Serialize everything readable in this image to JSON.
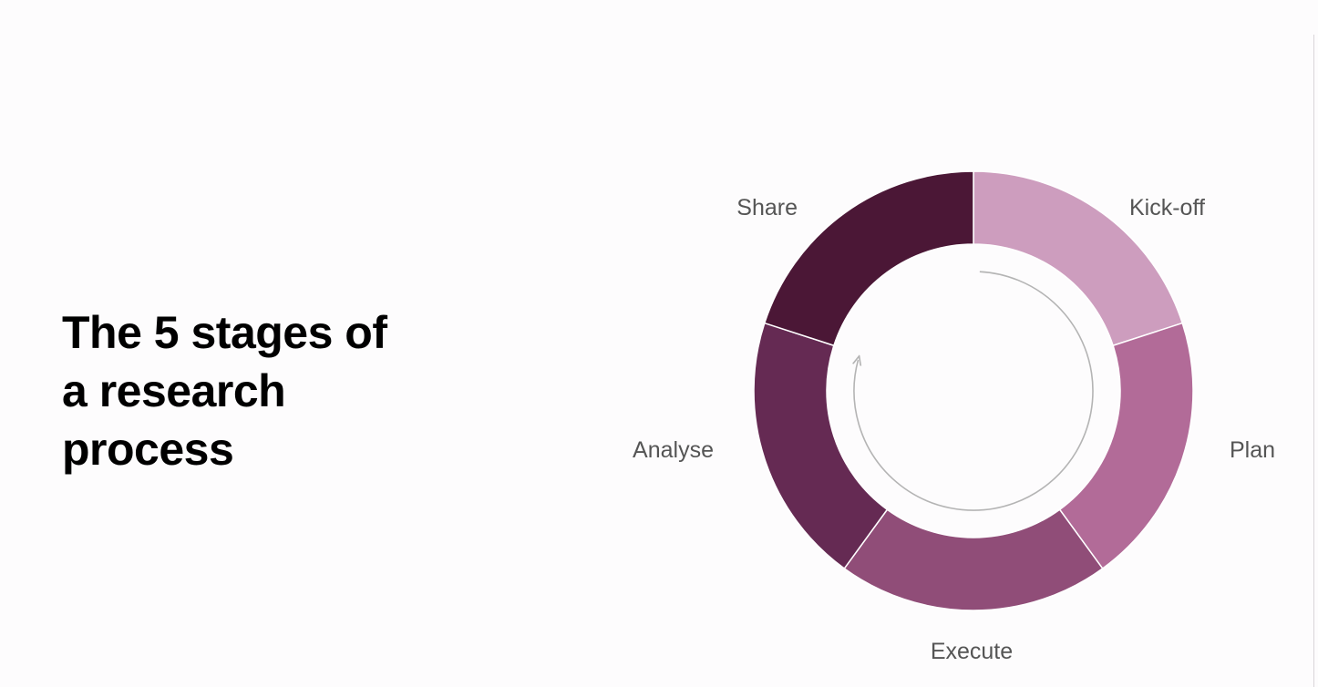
{
  "title": {
    "lines": [
      "The 5 stages of",
      "a research",
      "process"
    ]
  },
  "diagram": {
    "type": "cycle-donut",
    "direction": "clockwise",
    "stages": [
      {
        "label": "Kick-off",
        "color": "#cd9dbe"
      },
      {
        "label": "Plan",
        "color": "#b26b98"
      },
      {
        "label": "Execute",
        "color": "#904d78"
      },
      {
        "label": "Analyse",
        "color": "#652a53"
      },
      {
        "label": "Share",
        "color": "#4b1736"
      }
    ],
    "arrow_color": "#b4b4b4",
    "divider_color": "#ffffff"
  }
}
